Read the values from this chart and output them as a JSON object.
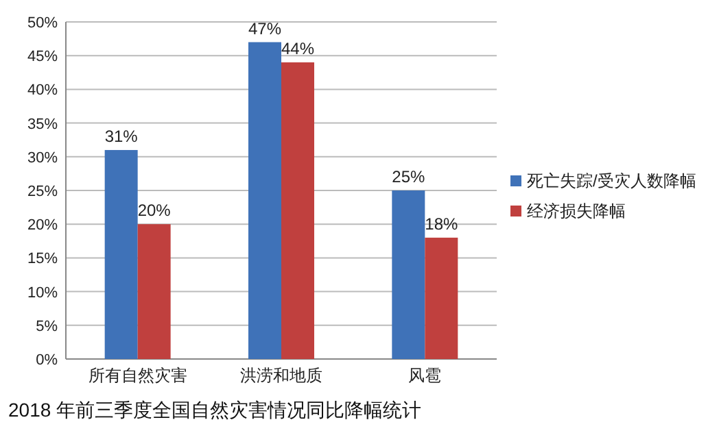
{
  "chart_data": {
    "type": "bar",
    "title": "2018 年前三季度全国自然灾害情况同比降幅统计",
    "categories": [
      "所有自然灾害",
      "洪涝和地质",
      "风雹"
    ],
    "series": [
      {
        "name": "死亡失踪/受灾人数降幅",
        "color": "#3f72b8",
        "values": [
          31,
          47,
          25
        ],
        "value_labels": [
          "31%",
          "47%",
          "25%"
        ]
      },
      {
        "name": "经济损失降幅",
        "color": "#c0403e",
        "values": [
          20,
          44,
          18
        ],
        "value_labels": [
          "20%",
          "44%",
          "18%"
        ]
      }
    ],
    "ylim": [
      0,
      50
    ],
    "yticks": [
      {
        "value": 0,
        "label": "0%"
      },
      {
        "value": 5,
        "label": "5%"
      },
      {
        "value": 10,
        "label": "10%"
      },
      {
        "value": 15,
        "label": "15%"
      },
      {
        "value": 20,
        "label": "20%"
      },
      {
        "value": 25,
        "label": "25%"
      },
      {
        "value": 30,
        "label": "30%"
      },
      {
        "value": 35,
        "label": "35%"
      },
      {
        "value": 40,
        "label": "40%"
      },
      {
        "value": 45,
        "label": "45%"
      },
      {
        "value": 50,
        "label": "50%"
      }
    ],
    "grid": true,
    "legend": "right"
  }
}
